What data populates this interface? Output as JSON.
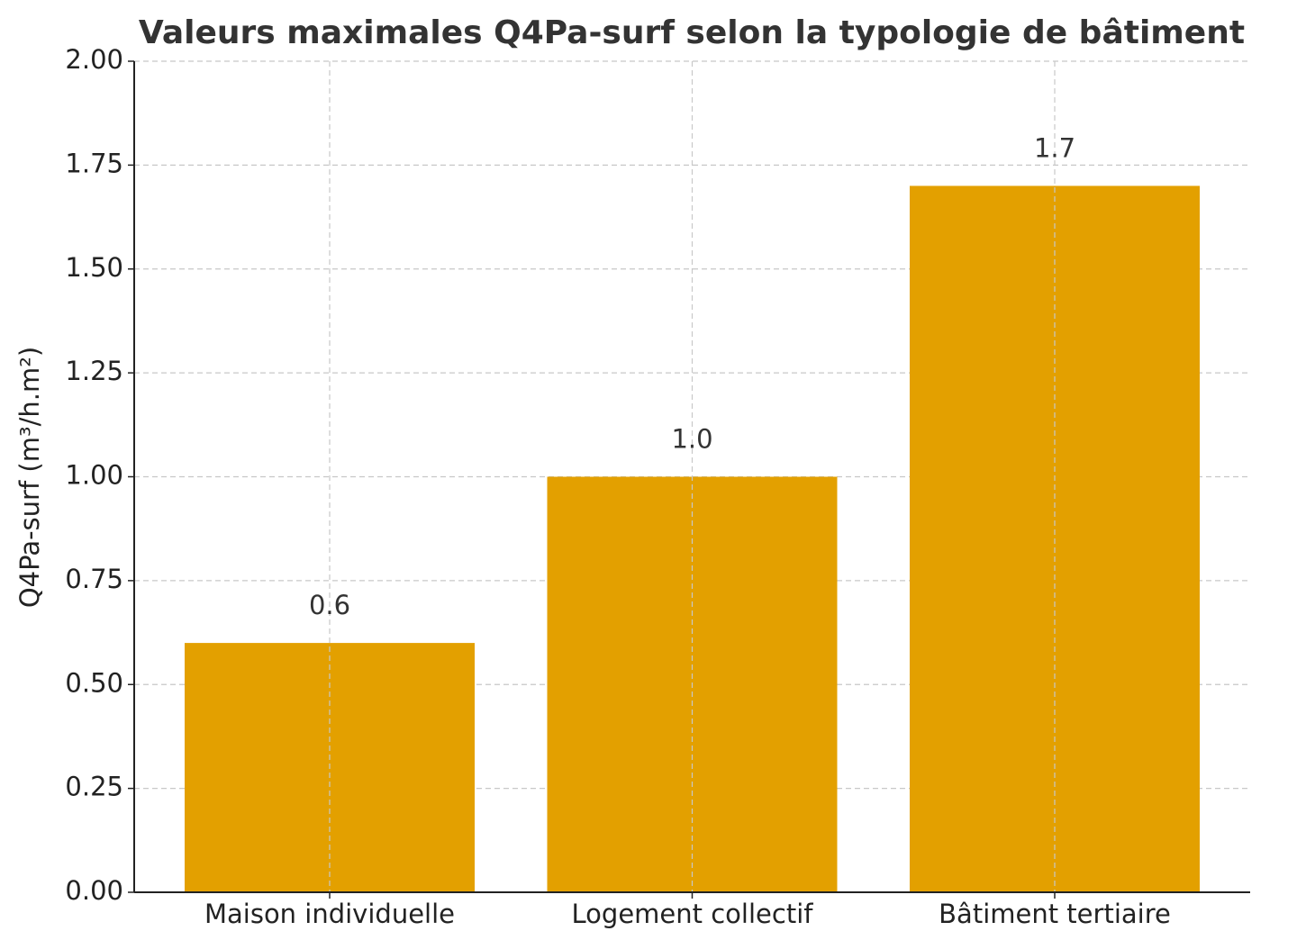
{
  "chart_data": {
    "type": "bar",
    "title": "Valeurs maximales Q4Pa-surf selon la typologie de bâtiment",
    "y_label": "Q4Pa-surf (m³/h.m²)",
    "categories": [
      "Maison individuelle",
      "Logement collectif",
      "Bâtiment tertiaire"
    ],
    "values": [
      0.6,
      1.0,
      1.7
    ],
    "value_labels": [
      "0.6",
      "1.0",
      "1.7"
    ],
    "color": "#e3a000",
    "ylim": [
      0,
      2
    ],
    "yticks": [
      {
        "value": 0,
        "label": "0.00"
      },
      {
        "value": 0.25,
        "label": "0.25"
      },
      {
        "value": 0.5,
        "label": "0.50"
      },
      {
        "value": 0.75,
        "label": "0.75"
      },
      {
        "value": 1,
        "label": "1.00"
      },
      {
        "value": 1.25,
        "label": "1.25"
      },
      {
        "value": 1.5,
        "label": "1.50"
      },
      {
        "value": 1.75,
        "label": "1.75"
      },
      {
        "value": 2,
        "label": "2.00"
      }
    ],
    "grid": true
  }
}
